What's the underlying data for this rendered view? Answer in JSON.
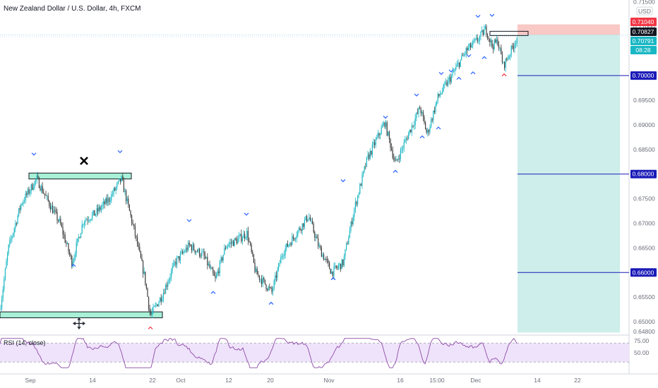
{
  "header": {
    "title": "New Zealand Dollar / U.S. Dollar, 4h, FXCM"
  },
  "currency_badge": "USD",
  "colors": {
    "up": "#26a69a",
    "up_body": "#19b7c4",
    "down": "#3d3d3d",
    "level_line": "#1a1ab8",
    "zone_fill": "#a8f0d6",
    "tp_fill": "#cdeeea",
    "sl_fill": "#f9c9c5",
    "rsi_line": "#8e4ba8",
    "rsi_band": "#efe3fb",
    "marker_blue": "#2962ff",
    "marker_red": "#f23645"
  },
  "chart_data": {
    "type": "candlestick",
    "symbol": "New Zealand Dollar / U.S. Dollar",
    "timeframe": "4h",
    "source": "FXCM",
    "x_ticks": [
      "Sep",
      "14",
      "22",
      "Oct",
      "12",
      "20",
      "Nov",
      "16",
      "15:00",
      "Dec",
      "14",
      "22"
    ],
    "y_ticks": [
      "0.71500",
      "0.71000",
      "0.70500",
      "0.69500",
      "0.69000",
      "0.68500",
      "0.68000",
      "0.67500",
      "0.67000",
      "0.66500",
      "0.66000",
      "0.65500",
      "0.65000",
      "0.64800"
    ],
    "y_tick_values": [
      0.715,
      0.71,
      0.705,
      0.695,
      0.69,
      0.685,
      0.68,
      0.675,
      0.67,
      0.665,
      0.66,
      0.655,
      0.65,
      0.648
    ],
    "ylim": [
      0.6478,
      0.7155
    ],
    "price_tags": [
      {
        "label": "0.71040",
        "value": 0.7104,
        "style": "sl"
      },
      {
        "label": "0.70827",
        "value": 0.70827,
        "style": "dark"
      },
      {
        "label": "0.70791",
        "value": 0.70791,
        "style": "teal"
      },
      {
        "label": "08:28",
        "value": 0.7064,
        "style": "teal"
      },
      {
        "label": "0.70000",
        "value": 0.7,
        "style": "blue"
      },
      {
        "label": "0.68000",
        "value": 0.68,
        "style": "blue"
      },
      {
        "label": "0.66000",
        "value": 0.66,
        "style": "blue"
      }
    ],
    "horizontal_levels": [
      0.7,
      0.68,
      0.66
    ],
    "swing_path": [
      [
        0,
        0.6525
      ],
      [
        12,
        0.665
      ],
      [
        30,
        0.674
      ],
      [
        52,
        0.679
      ],
      [
        68,
        0.6745
      ],
      [
        85,
        0.67
      ],
      [
        102,
        0.662
      ],
      [
        118,
        0.6705
      ],
      [
        135,
        0.672
      ],
      [
        155,
        0.675
      ],
      [
        172,
        0.679
      ],
      [
        190,
        0.6685
      ],
      [
        205,
        0.659
      ],
      [
        213,
        0.6512
      ],
      [
        230,
        0.6555
      ],
      [
        248,
        0.662
      ],
      [
        268,
        0.6655
      ],
      [
        288,
        0.6635
      ],
      [
        305,
        0.6585
      ],
      [
        320,
        0.6655
      ],
      [
        335,
        0.6665
      ],
      [
        350,
        0.668
      ],
      [
        362,
        0.66
      ],
      [
        385,
        0.656
      ],
      [
        400,
        0.664
      ],
      [
        420,
        0.668
      ],
      [
        437,
        0.6715
      ],
      [
        452,
        0.665
      ],
      [
        470,
        0.66
      ],
      [
        486,
        0.662
      ],
      [
        502,
        0.673
      ],
      [
        520,
        0.683
      ],
      [
        545,
        0.6905
      ],
      [
        560,
        0.682
      ],
      [
        578,
        0.688
      ],
      [
        595,
        0.6935
      ],
      [
        605,
        0.688
      ],
      [
        620,
        0.6955
      ],
      [
        640,
        0.7
      ],
      [
        660,
        0.705
      ],
      [
        678,
        0.7075
      ],
      [
        688,
        0.7095
      ],
      [
        697,
        0.706
      ],
      [
        705,
        0.707
      ],
      [
        713,
        0.702
      ],
      [
        722,
        0.7045
      ],
      [
        733,
        0.708
      ]
    ],
    "zones": [
      {
        "name": "resistance-zone",
        "x0": 41,
        "x1": 186,
        "y_top": 0.6802,
        "y_bot": 0.679
      },
      {
        "name": "support-zone",
        "x0": 0,
        "x1": 230,
        "y_top": 0.652,
        "y_bot": 0.6508
      },
      {
        "name": "entry-box",
        "x0": 694,
        "x1": 748,
        "y_top": 0.709,
        "y_bot": 0.7082
      }
    ],
    "position": {
      "entry": 0.70827,
      "stop": 0.7104,
      "target": 0.6478,
      "x0": 733,
      "x1": 878
    },
    "swing_highs_blue": [
      [
        48,
        0.684
      ],
      [
        170,
        0.6845
      ],
      [
        268,
        0.6705
      ],
      [
        349,
        0.6718
      ],
      [
        486,
        0.6786
      ],
      [
        546,
        0.6915
      ],
      [
        590,
        0.696
      ],
      [
        625,
        0.7004
      ],
      [
        639,
        0.7009
      ],
      [
        664,
        0.704
      ],
      [
        677,
        0.712
      ],
      [
        697,
        0.7122
      ]
    ],
    "swing_lows_blue": [
      [
        104,
        0.6615
      ],
      [
        302,
        0.656
      ],
      [
        384,
        0.6538
      ],
      [
        472,
        0.6588
      ],
      [
        560,
        0.6806
      ],
      [
        598,
        0.6876
      ],
      [
        621,
        0.6894
      ],
      [
        650,
        0.6995
      ],
      [
        670,
        0.7006
      ],
      [
        686,
        0.7037
      ]
    ],
    "swing_lows_red": [
      [
        213,
        0.6488
      ],
      [
        714,
        0.7002
      ]
    ],
    "rsi": {
      "label": "RSI (14, close)",
      "ticks": [
        "75.00",
        "50.00"
      ],
      "upper": 70,
      "lower": 30,
      "ylim": [
        8,
        84
      ]
    }
  }
}
